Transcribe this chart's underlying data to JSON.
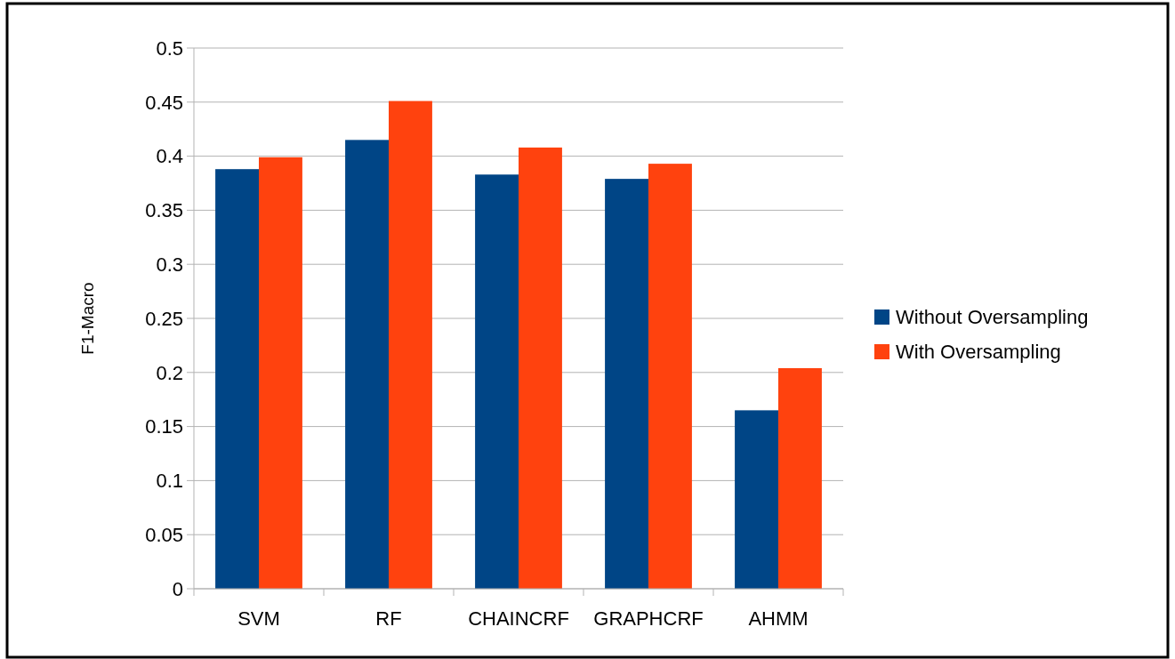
{
  "chart_data": {
    "type": "bar",
    "ylabel": "F1-Macro",
    "categories": [
      "SVM",
      "RF",
      "CHAINCRF",
      "GRAPHCRF",
      "AHMM"
    ],
    "series": [
      {
        "name": "Without Oversampling",
        "color": "#004586",
        "values": [
          0.388,
          0.415,
          0.383,
          0.379,
          0.165
        ]
      },
      {
        "name": "With Oversampling",
        "color": "#ff420e",
        "values": [
          0.399,
          0.451,
          0.408,
          0.393,
          0.204
        ]
      }
    ],
    "ylim": [
      0,
      0.5
    ],
    "yticks": [
      0,
      0.05,
      0.1,
      0.15,
      0.2,
      0.25,
      0.3,
      0.35,
      0.4,
      0.45,
      0.5
    ],
    "grid": "y",
    "legend": "right"
  }
}
